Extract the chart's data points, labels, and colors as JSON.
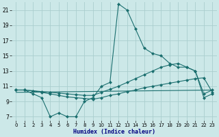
{
  "xlabel": "Humidex (Indice chaleur)",
  "background_color": "#cce8e8",
  "grid_color": "#aacece",
  "line_color": "#1a6e6e",
  "xlim": [
    -0.5,
    23.5
  ],
  "ylim": [
    6.5,
    22.0
  ],
  "yticks": [
    7,
    9,
    11,
    13,
    15,
    17,
    19,
    21
  ],
  "xticks": [
    0,
    1,
    2,
    3,
    4,
    5,
    6,
    7,
    8,
    9,
    10,
    11,
    12,
    13,
    14,
    15,
    16,
    17,
    18,
    19,
    20,
    21,
    22,
    23
  ],
  "curve1_x": [
    0,
    1,
    2,
    3,
    4,
    5,
    6,
    7,
    8,
    9,
    10,
    11,
    12,
    13,
    14,
    15,
    16,
    17,
    18,
    19,
    20,
    21,
    22,
    23
  ],
  "curve1_y": [
    10.5,
    10.5,
    10.0,
    9.5,
    7.0,
    7.5,
    7.0,
    7.0,
    9.0,
    9.5,
    11.0,
    11.5,
    21.8,
    21.0,
    18.5,
    16.0,
    15.3,
    15.0,
    14.0,
    13.5,
    13.5,
    13.0,
    9.5,
    10.0
  ],
  "curve2_x": [
    0,
    1,
    2,
    3,
    4,
    5,
    6,
    7,
    8,
    9,
    10,
    11,
    12,
    13,
    14,
    15,
    16,
    17,
    18,
    19,
    20,
    21,
    22,
    23
  ],
  "curve2_y": [
    10.5,
    10.5,
    10.4,
    10.2,
    10.0,
    9.8,
    9.6,
    9.5,
    9.4,
    9.3,
    9.5,
    9.8,
    10.0,
    10.3,
    10.5,
    10.8,
    11.0,
    11.2,
    11.4,
    11.6,
    11.8,
    12.0,
    12.1,
    10.2
  ],
  "curve3_x": [
    0,
    23
  ],
  "curve3_y": [
    10.2,
    10.5
  ],
  "curve4_x": [
    0,
    1,
    2,
    3,
    4,
    5,
    6,
    7,
    8,
    9,
    10,
    11,
    12,
    13,
    14,
    15,
    16,
    17,
    18,
    19,
    20,
    21,
    22,
    23
  ],
  "curve4_y": [
    10.5,
    10.5,
    10.4,
    10.3,
    10.2,
    10.1,
    10.0,
    9.9,
    9.8,
    9.8,
    10.2,
    10.6,
    11.0,
    11.5,
    12.0,
    12.5,
    13.0,
    13.5,
    13.8,
    14.0,
    13.5,
    13.0,
    10.0,
    10.5
  ]
}
